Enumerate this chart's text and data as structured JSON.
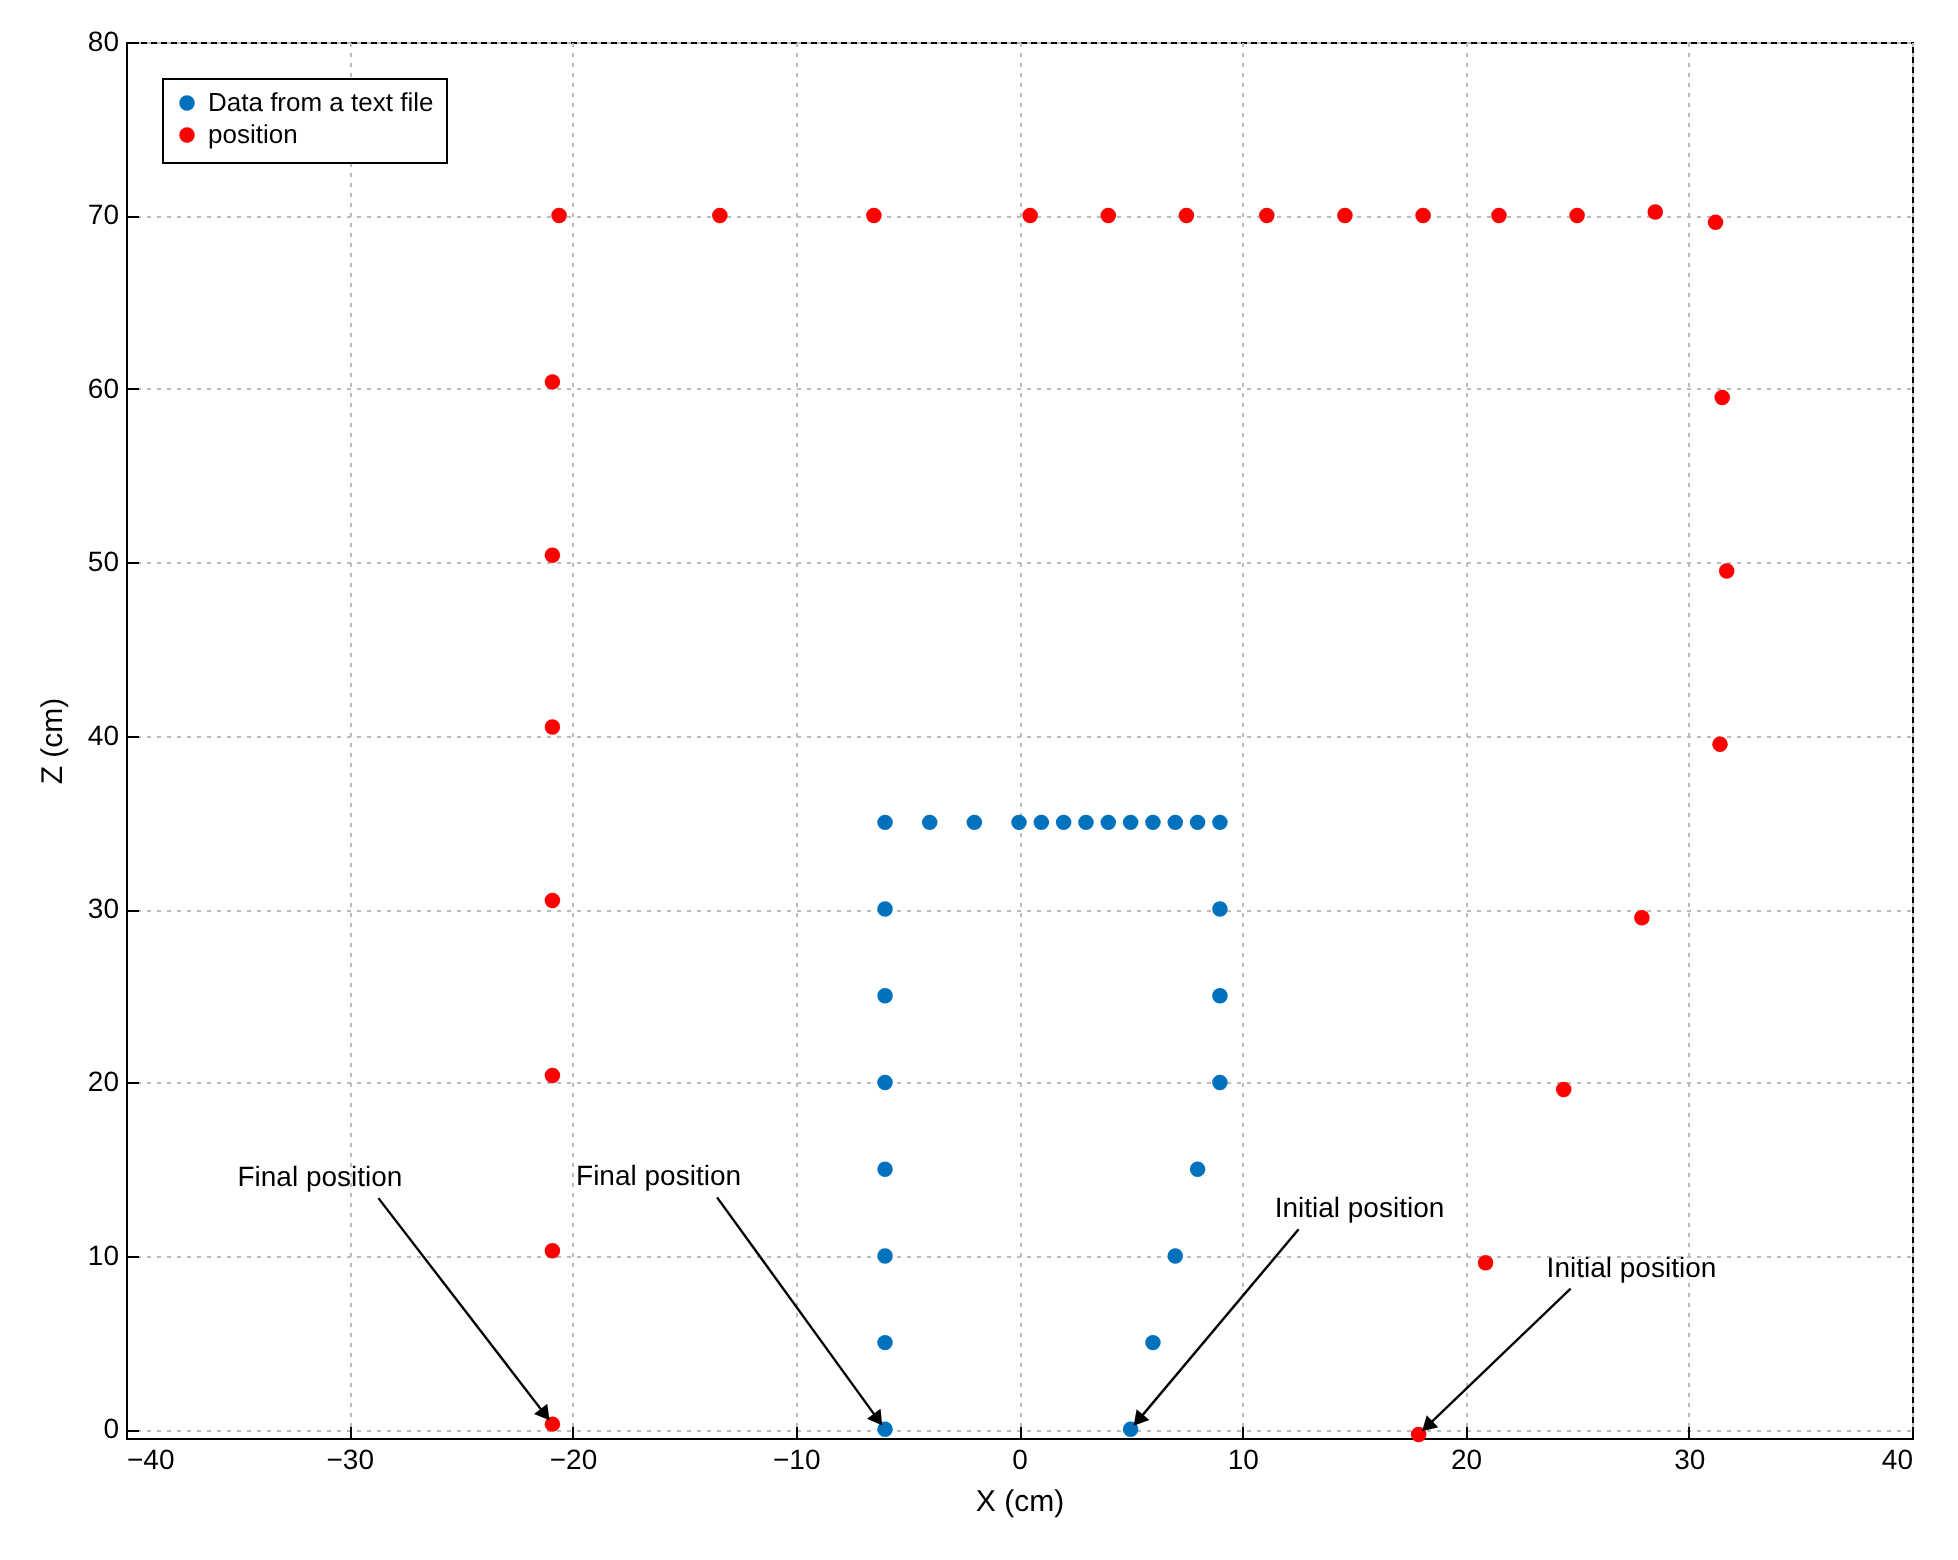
{
  "chart_data": {
    "type": "scatter",
    "xlabel": "X (cm)",
    "ylabel": "Z (cm)",
    "xlim": [
      -40,
      40
    ],
    "xticks": [
      -40,
      -30,
      -20,
      -10,
      0,
      10,
      20,
      30,
      40
    ],
    "ylim": [
      -0.5,
      80
    ],
    "yticks": [
      0,
      10,
      20,
      30,
      40,
      50,
      60,
      70,
      80
    ],
    "grid": true,
    "legend": "top left",
    "marker": "circle",
    "series": [
      {
        "name": "Data from a text file",
        "color": "#0072bd",
        "x": [
          -6,
          -6,
          -6,
          -6,
          -6,
          -6,
          -6,
          -6,
          -4,
          -2,
          0,
          1,
          2,
          3,
          4,
          5,
          6,
          7,
          8,
          9,
          9,
          9,
          9,
          8,
          7,
          6,
          5
        ],
        "values": [
          0,
          5,
          10,
          15,
          20,
          25,
          30,
          35,
          35,
          35,
          35,
          35,
          35,
          35,
          35,
          35,
          35,
          35,
          35,
          35,
          30,
          25,
          20,
          15,
          10,
          5,
          0
        ]
      },
      {
        "name": "position",
        "color": "#ff0000",
        "x": [
          -20.9,
          -20.9,
          -20.9,
          -20.9,
          -20.9,
          -20.9,
          -20.9,
          -20.6,
          -13.4,
          -6.5,
          0.5,
          4.0,
          7.5,
          11.1,
          14.6,
          18.1,
          21.5,
          25.0,
          28.5,
          31.2,
          31.5,
          31.7,
          31.4,
          27.9,
          24.4,
          20.9,
          17.9
        ],
        "values": [
          0.3,
          10.3,
          20.4,
          30.5,
          40.5,
          50.4,
          60.4,
          70.0,
          70.0,
          70.0,
          70.0,
          70.0,
          70.0,
          70.0,
          70.0,
          70.0,
          70.0,
          70.0,
          70.2,
          69.6,
          59.5,
          49.5,
          39.5,
          29.5,
          19.6,
          9.6,
          -0.3
        ]
      }
    ],
    "annotations": [
      {
        "text": "Final position",
        "x": -20.9,
        "y": 0.3
      },
      {
        "text": "Final position",
        "x": -6,
        "y": 0
      },
      {
        "text": "Initial position",
        "x": 5,
        "y": 0
      },
      {
        "text": "Initial position",
        "x": 17.9,
        "y": -0.3
      }
    ]
  }
}
